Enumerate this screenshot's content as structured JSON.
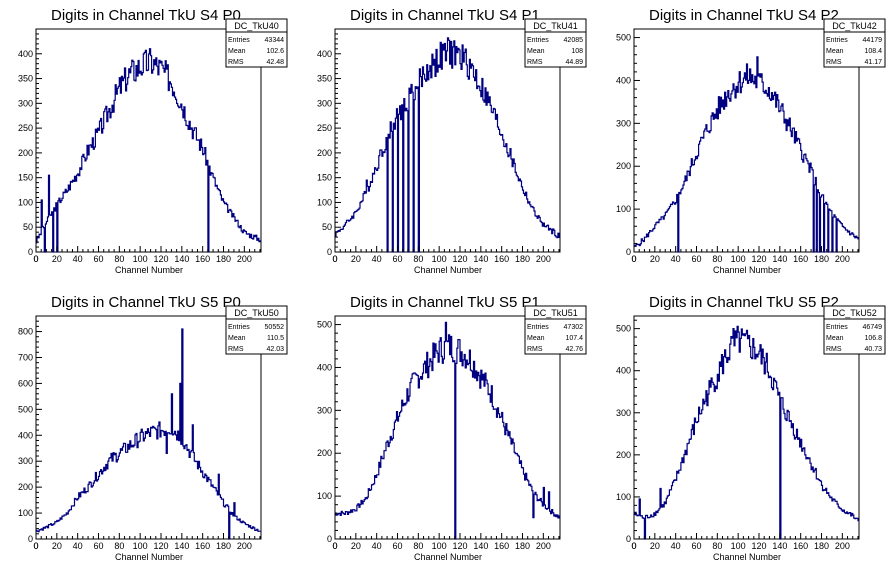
{
  "page": {
    "background": "#ffffff"
  },
  "style": {
    "line_color": "#000080",
    "axis_color": "#000000"
  },
  "chart_data": [
    {
      "type": "histogram",
      "title": "Digits in Channel TkU S4 P0",
      "xlabel": "Channel Number",
      "xlim": [
        0,
        216
      ],
      "ylim": [
        0,
        450
      ],
      "xticks": [
        0,
        20,
        40,
        60,
        80,
        100,
        120,
        140,
        160,
        180,
        200
      ],
      "yticks": [
        50,
        100,
        150,
        200,
        250,
        300,
        350,
        400
      ],
      "stats": {
        "name": "DC_TkU40",
        "rows": [
          {
            "label": "Entries",
            "value": "43344"
          },
          {
            "label": "Mean",
            "value": "102.6"
          },
          {
            "label": "RMS",
            "value": "42.48"
          }
        ]
      },
      "profile": [
        [
          0,
          20
        ],
        [
          10,
          60
        ],
        [
          20,
          95
        ],
        [
          30,
          125
        ],
        [
          40,
          160
        ],
        [
          50,
          205
        ],
        [
          60,
          240
        ],
        [
          70,
          285
        ],
        [
          80,
          330
        ],
        [
          90,
          360
        ],
        [
          100,
          375
        ],
        [
          110,
          385
        ],
        [
          120,
          370
        ],
        [
          130,
          345
        ],
        [
          140,
          300
        ],
        [
          150,
          250
        ],
        [
          160,
          210
        ],
        [
          170,
          150
        ],
        [
          180,
          100
        ],
        [
          190,
          70
        ],
        [
          200,
          40
        ],
        [
          210,
          30
        ],
        [
          216,
          25
        ]
      ],
      "spikes": [
        [
          5,
          105
        ],
        [
          8,
          0
        ],
        [
          12,
          155
        ],
        [
          16,
          0
        ],
        [
          20,
          0
        ],
        [
          165,
          0
        ],
        [
          168,
          160
        ]
      ]
    },
    {
      "type": "histogram",
      "title": "Digits in Channel TkU S4 P1",
      "xlabel": "Channel Number",
      "xlim": [
        0,
        216
      ],
      "ylim": [
        0,
        450
      ],
      "xticks": [
        0,
        20,
        40,
        60,
        80,
        100,
        120,
        140,
        160,
        180,
        200
      ],
      "yticks": [
        50,
        100,
        150,
        200,
        250,
        300,
        350,
        400
      ],
      "stats": {
        "name": "DC_TkU41",
        "rows": [
          {
            "label": "Entries",
            "value": "42085"
          },
          {
            "label": "Mean",
            "value": "108"
          },
          {
            "label": "RMS",
            "value": "44.89"
          }
        ]
      },
      "profile": [
        [
          0,
          35
        ],
        [
          10,
          55
        ],
        [
          20,
          80
        ],
        [
          30,
          120
        ],
        [
          40,
          175
        ],
        [
          50,
          230
        ],
        [
          60,
          275
        ],
        [
          70,
          310
        ],
        [
          80,
          340
        ],
        [
          90,
          370
        ],
        [
          100,
          390
        ],
        [
          110,
          405
        ],
        [
          120,
          395
        ],
        [
          130,
          375
        ],
        [
          140,
          335
        ],
        [
          150,
          290
        ],
        [
          160,
          240
        ],
        [
          170,
          185
        ],
        [
          180,
          130
        ],
        [
          190,
          85
        ],
        [
          200,
          55
        ],
        [
          210,
          40
        ],
        [
          216,
          30
        ]
      ],
      "spikes": [
        [
          30,
          145
        ],
        [
          50,
          0
        ],
        [
          52,
          230
        ],
        [
          55,
          0
        ],
        [
          58,
          270
        ],
        [
          60,
          0
        ],
        [
          62,
          295
        ],
        [
          65,
          0
        ],
        [
          68,
          290
        ],
        [
          70,
          0
        ],
        [
          72,
          320
        ],
        [
          75,
          0
        ],
        [
          78,
          330
        ],
        [
          80,
          0
        ]
      ]
    },
    {
      "type": "histogram",
      "title": "Digits in Channel TkU S4 P2",
      "xlabel": "Channel Number",
      "xlim": [
        0,
        216
      ],
      "ylim": [
        0,
        520
      ],
      "xticks": [
        0,
        20,
        40,
        60,
        80,
        100,
        120,
        140,
        160,
        180,
        200
      ],
      "yticks": [
        100,
        200,
        300,
        400,
        500
      ],
      "stats": {
        "name": "DC_TkU42",
        "rows": [
          {
            "label": "Entries",
            "value": "44179"
          },
          {
            "label": "Mean",
            "value": "108.4"
          },
          {
            "label": "RMS",
            "value": "41.17"
          }
        ]
      },
      "profile": [
        [
          0,
          10
        ],
        [
          10,
          30
        ],
        [
          20,
          60
        ],
        [
          30,
          85
        ],
        [
          40,
          120
        ],
        [
          50,
          170
        ],
        [
          60,
          230
        ],
        [
          70,
          285
        ],
        [
          80,
          330
        ],
        [
          90,
          370
        ],
        [
          100,
          395
        ],
        [
          110,
          410
        ],
        [
          120,
          395
        ],
        [
          130,
          380
        ],
        [
          140,
          335
        ],
        [
          150,
          290
        ],
        [
          160,
          240
        ],
        [
          170,
          190
        ],
        [
          180,
          130
        ],
        [
          190,
          90
        ],
        [
          200,
          60
        ],
        [
          210,
          40
        ],
        [
          216,
          30
        ]
      ],
      "spikes": [
        [
          42,
          0
        ],
        [
          118,
          455
        ],
        [
          172,
          0
        ],
        [
          175,
          0
        ],
        [
          178,
          0
        ],
        [
          182,
          0
        ],
        [
          186,
          0
        ],
        [
          190,
          0
        ],
        [
          194,
          0
        ]
      ]
    },
    {
      "type": "histogram",
      "title": "Digits in Channel TkU S5 P0",
      "xlabel": "Channel Number",
      "xlim": [
        0,
        216
      ],
      "ylim": [
        0,
        860
      ],
      "xticks": [
        0,
        20,
        40,
        60,
        80,
        100,
        120,
        140,
        160,
        180,
        200
      ],
      "yticks": [
        100,
        200,
        300,
        400,
        500,
        600,
        700,
        800
      ],
      "stats": {
        "name": "DC_TkU50",
        "rows": [
          {
            "label": "Entries",
            "value": "50552"
          },
          {
            "label": "Mean",
            "value": "110.5"
          },
          {
            "label": "RMS",
            "value": "42.03"
          }
        ]
      },
      "profile": [
        [
          0,
          30
        ],
        [
          10,
          45
        ],
        [
          20,
          65
        ],
        [
          30,
          100
        ],
        [
          40,
          160
        ],
        [
          50,
          200
        ],
        [
          60,
          250
        ],
        [
          70,
          300
        ],
        [
          80,
          330
        ],
        [
          90,
          360
        ],
        [
          100,
          390
        ],
        [
          110,
          410
        ],
        [
          120,
          420
        ],
        [
          130,
          430
        ],
        [
          140,
          390
        ],
        [
          150,
          320
        ],
        [
          160,
          260
        ],
        [
          170,
          200
        ],
        [
          180,
          140
        ],
        [
          190,
          90
        ],
        [
          200,
          60
        ],
        [
          210,
          40
        ],
        [
          216,
          30
        ]
      ],
      "spikes": [
        [
          125,
          330
        ],
        [
          130,
          560
        ],
        [
          138,
          600
        ],
        [
          140,
          810
        ],
        [
          143,
          360
        ],
        [
          150,
          440
        ],
        [
          175,
          250
        ],
        [
          185,
          0
        ],
        [
          190,
          140
        ]
      ]
    },
    {
      "type": "histogram",
      "title": "Digits in Channel TkU S5 P1",
      "xlabel": "Channel Number",
      "xlim": [
        0,
        216
      ],
      "ylim": [
        0,
        520
      ],
      "xticks": [
        0,
        20,
        40,
        60,
        80,
        100,
        120,
        140,
        160,
        180,
        200
      ],
      "yticks": [
        100,
        200,
        300,
        400,
        500
      ],
      "stats": {
        "name": "DC_TkU51",
        "rows": [
          {
            "label": "Entries",
            "value": "47302"
          },
          {
            "label": "Mean",
            "value": "107.4"
          },
          {
            "label": "RMS",
            "value": "42.76"
          }
        ]
      },
      "profile": [
        [
          0,
          60
        ],
        [
          10,
          60
        ],
        [
          20,
          70
        ],
        [
          30,
          95
        ],
        [
          40,
          150
        ],
        [
          50,
          220
        ],
        [
          60,
          280
        ],
        [
          70,
          340
        ],
        [
          80,
          380
        ],
        [
          90,
          410
        ],
        [
          100,
          440
        ],
        [
          110,
          450
        ],
        [
          120,
          440
        ],
        [
          130,
          420
        ],
        [
          140,
          380
        ],
        [
          150,
          340
        ],
        [
          160,
          280
        ],
        [
          170,
          220
        ],
        [
          180,
          160
        ],
        [
          190,
          110
        ],
        [
          200,
          80
        ],
        [
          210,
          60
        ],
        [
          216,
          50
        ]
      ],
      "spikes": [
        [
          106,
          505
        ],
        [
          115,
          0
        ],
        [
          190,
          50
        ],
        [
          200,
          120
        ],
        [
          205,
          110
        ]
      ]
    },
    {
      "type": "histogram",
      "title": "Digits in Channel TkU S5 P2",
      "xlabel": "Channel Number",
      "xlim": [
        0,
        216
      ],
      "ylim": [
        0,
        530
      ],
      "xticks": [
        0,
        20,
        40,
        60,
        80,
        100,
        120,
        140,
        160,
        180,
        200
      ],
      "yticks": [
        100,
        200,
        300,
        400,
        500
      ],
      "stats": {
        "name": "DC_TkU52",
        "rows": [
          {
            "label": "Entries",
            "value": "46749"
          },
          {
            "label": "Mean",
            "value": "106.8"
          },
          {
            "label": "RMS",
            "value": "40.73"
          }
        ]
      },
      "profile": [
        [
          0,
          60
        ],
        [
          10,
          50
        ],
        [
          20,
          60
        ],
        [
          30,
          85
        ],
        [
          40,
          140
        ],
        [
          50,
          210
        ],
        [
          60,
          280
        ],
        [
          70,
          340
        ],
        [
          80,
          390
        ],
        [
          90,
          440
        ],
        [
          100,
          470
        ],
        [
          110,
          460
        ],
        [
          120,
          440
        ],
        [
          130,
          400
        ],
        [
          140,
          330
        ],
        [
          150,
          280
        ],
        [
          160,
          230
        ],
        [
          170,
          180
        ],
        [
          180,
          130
        ],
        [
          190,
          95
        ],
        [
          200,
          70
        ],
        [
          210,
          55
        ],
        [
          216,
          40
        ]
      ],
      "spikes": [
        [
          5,
          95
        ],
        [
          10,
          0
        ],
        [
          25,
          120
        ],
        [
          95,
          500
        ],
        [
          140,
          0
        ]
      ]
    }
  ]
}
